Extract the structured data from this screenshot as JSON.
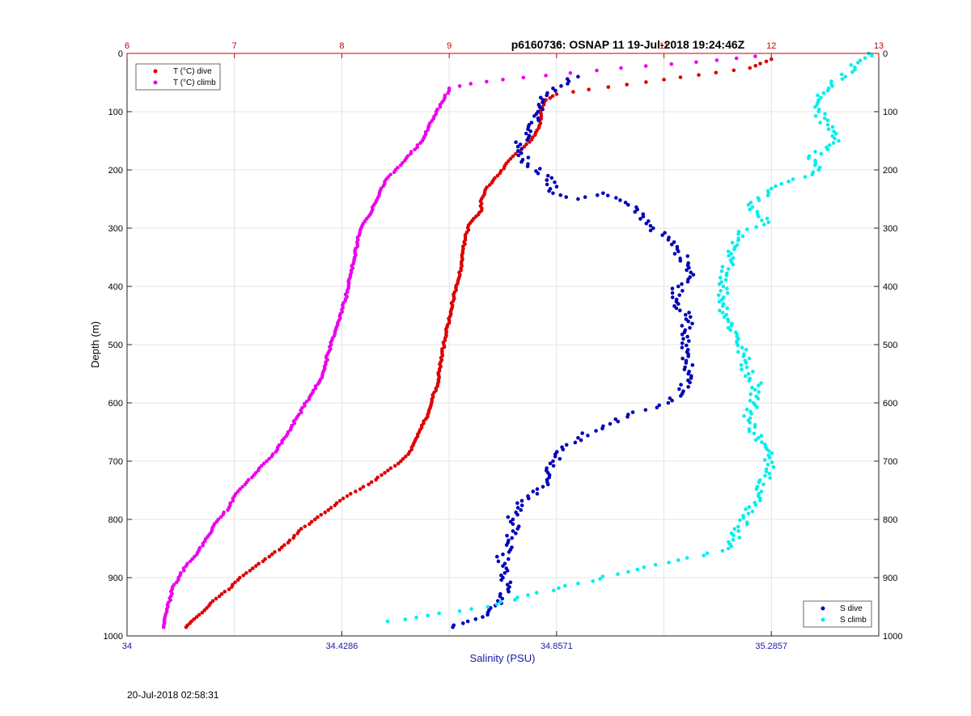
{
  "timestamp": "20-Jul-2018 02:58:31",
  "chart_data": {
    "type": "scatter",
    "title": "p6160736: OSNAP 11 19-Jul-2018 19:24:46Z",
    "ylabel": "Depth (m)",
    "xlabel_bottom": "Salinity (PSU)",
    "ylim": [
      0,
      1000
    ],
    "y_reversed": true,
    "yticks": [
      "0",
      "100",
      "200",
      "300",
      "400",
      "500",
      "600",
      "700",
      "800",
      "900",
      "1000"
    ],
    "x_top": {
      "range": [
        6,
        13
      ],
      "ticks": [
        "6",
        "7",
        "8",
        "9",
        "10",
        "11",
        "12",
        "13"
      ],
      "color": "#cc0000"
    },
    "x_bottom": {
      "range": [
        34,
        35.5
      ],
      "ticks": [
        "34",
        "34.4286",
        "34.8571",
        "35.2857"
      ],
      "tick_values": [
        34,
        34.4286,
        34.8571,
        35.2857
      ],
      "color": "#1a1aaa"
    },
    "grid": true,
    "legend_top": {
      "placement": "top-left",
      "items": [
        {
          "label": "T (°C) dive",
          "color": "#dd0000"
        },
        {
          "label": "T (°C) climb",
          "color": "#ee00ee"
        }
      ]
    },
    "legend_bottom": {
      "placement": "bottom-right",
      "items": [
        {
          "label": "S dive",
          "color": "#0000bb"
        },
        {
          "label": "S climb",
          "color": "#00eeee"
        }
      ]
    },
    "series": [
      {
        "name": "T (°C) dive",
        "axis": "top",
        "color": "#dd0000",
        "points": [
          [
            12.0,
            10
          ],
          [
            11.8,
            25
          ],
          [
            11.0,
            45
          ],
          [
            10.3,
            62
          ],
          [
            10.0,
            70
          ],
          [
            9.9,
            80
          ],
          [
            9.85,
            100
          ],
          [
            9.85,
            120
          ],
          [
            9.8,
            140
          ],
          [
            9.7,
            160
          ],
          [
            9.55,
            185
          ],
          [
            9.45,
            210
          ],
          [
            9.35,
            230
          ],
          [
            9.3,
            250
          ],
          [
            9.3,
            270
          ],
          [
            9.25,
            280
          ],
          [
            9.18,
            295
          ],
          [
            9.15,
            320
          ],
          [
            9.12,
            350
          ],
          [
            9.1,
            380
          ],
          [
            9.05,
            410
          ],
          [
            9.02,
            440
          ],
          [
            8.98,
            470
          ],
          [
            8.95,
            500
          ],
          [
            8.92,
            530
          ],
          [
            8.9,
            560
          ],
          [
            8.85,
            590
          ],
          [
            8.8,
            620
          ],
          [
            8.72,
            650
          ],
          [
            8.65,
            680
          ],
          [
            8.55,
            700
          ],
          [
            8.4,
            720
          ],
          [
            8.25,
            740
          ],
          [
            8.05,
            760
          ],
          [
            7.9,
            780
          ],
          [
            7.75,
            800
          ],
          [
            7.6,
            820
          ],
          [
            7.5,
            840
          ],
          [
            7.35,
            860
          ],
          [
            7.2,
            880
          ],
          [
            7.05,
            900
          ],
          [
            6.95,
            920
          ],
          [
            6.8,
            940
          ],
          [
            6.7,
            960
          ],
          [
            6.6,
            975
          ],
          [
            6.55,
            985
          ]
        ]
      },
      {
        "name": "T (°C) climb",
        "axis": "top",
        "color": "#ee00ee",
        "points": [
          [
            11.85,
            5
          ],
          [
            11.3,
            15
          ],
          [
            10.6,
            25
          ],
          [
            9.9,
            38
          ],
          [
            9.5,
            45
          ],
          [
            9.2,
            52
          ],
          [
            9.0,
            60
          ],
          [
            8.95,
            80
          ],
          [
            8.88,
            100
          ],
          [
            8.82,
            120
          ],
          [
            8.75,
            150
          ],
          [
            8.6,
            180
          ],
          [
            8.5,
            200
          ],
          [
            8.4,
            220
          ],
          [
            8.35,
            240
          ],
          [
            8.3,
            260
          ],
          [
            8.25,
            280
          ],
          [
            8.18,
            300
          ],
          [
            8.15,
            320
          ],
          [
            8.12,
            350
          ],
          [
            8.08,
            380
          ],
          [
            8.05,
            410
          ],
          [
            8.0,
            440
          ],
          [
            7.95,
            470
          ],
          [
            7.9,
            500
          ],
          [
            7.85,
            530
          ],
          [
            7.8,
            560
          ],
          [
            7.7,
            590
          ],
          [
            7.6,
            620
          ],
          [
            7.5,
            650
          ],
          [
            7.4,
            680
          ],
          [
            7.3,
            700
          ],
          [
            7.2,
            720
          ],
          [
            7.1,
            740
          ],
          [
            7.0,
            760
          ],
          [
            6.95,
            780
          ],
          [
            6.85,
            800
          ],
          [
            6.75,
            830
          ],
          [
            6.65,
            860
          ],
          [
            6.55,
            880
          ],
          [
            6.48,
            900
          ],
          [
            6.42,
            920
          ],
          [
            6.38,
            950
          ],
          [
            6.35,
            970
          ],
          [
            6.34,
            985
          ]
        ]
      },
      {
        "name": "S dive",
        "axis": "bottom",
        "color": "#0000bb",
        "points": [
          [
            34.9,
            40
          ],
          [
            34.85,
            60
          ],
          [
            34.83,
            80
          ],
          [
            34.82,
            100
          ],
          [
            34.8,
            130
          ],
          [
            34.78,
            160
          ],
          [
            34.8,
            190
          ],
          [
            34.84,
            210
          ],
          [
            34.85,
            240
          ],
          [
            34.9,
            250
          ],
          [
            34.95,
            240
          ],
          [
            35.0,
            260
          ],
          [
            35.03,
            280
          ],
          [
            35.05,
            300
          ],
          [
            35.08,
            320
          ],
          [
            35.1,
            340
          ],
          [
            35.12,
            360
          ],
          [
            35.13,
            380
          ],
          [
            35.1,
            400
          ],
          [
            35.1,
            430
          ],
          [
            35.12,
            460
          ],
          [
            35.11,
            490
          ],
          [
            35.12,
            520
          ],
          [
            35.12,
            550
          ],
          [
            35.11,
            580
          ],
          [
            35.08,
            600
          ],
          [
            35.0,
            620
          ],
          [
            34.95,
            640
          ],
          [
            34.9,
            660
          ],
          [
            34.87,
            680
          ],
          [
            34.85,
            700
          ],
          [
            34.84,
            720
          ],
          [
            34.84,
            740
          ],
          [
            34.8,
            760
          ],
          [
            34.78,
            780
          ],
          [
            34.77,
            800
          ],
          [
            34.77,
            820
          ],
          [
            34.76,
            840
          ],
          [
            34.75,
            860
          ],
          [
            34.75,
            880
          ],
          [
            34.75,
            900
          ],
          [
            34.76,
            920
          ],
          [
            34.74,
            940
          ],
          [
            34.72,
            960
          ],
          [
            34.68,
            975
          ],
          [
            34.65,
            985
          ]
        ]
      },
      {
        "name": "S climb",
        "axis": "bottom",
        "color": "#00eeee",
        "points": [
          [
            35.48,
            0
          ],
          [
            35.4,
            60
          ],
          [
            35.38,
            80
          ],
          [
            35.38,
            100
          ],
          [
            35.4,
            130
          ],
          [
            35.42,
            150
          ],
          [
            35.36,
            180
          ],
          [
            35.38,
            200
          ],
          [
            35.32,
            220
          ],
          [
            35.28,
            240
          ],
          [
            35.24,
            260
          ],
          [
            35.26,
            280
          ],
          [
            35.28,
            290
          ],
          [
            35.22,
            310
          ],
          [
            35.2,
            340
          ],
          [
            35.2,
            370
          ],
          [
            35.19,
            400
          ],
          [
            35.19,
            430
          ],
          [
            35.2,
            460
          ],
          [
            35.22,
            490
          ],
          [
            35.23,
            520
          ],
          [
            35.24,
            550
          ],
          [
            35.26,
            570
          ],
          [
            35.25,
            600
          ],
          [
            35.24,
            630
          ],
          [
            35.26,
            660
          ],
          [
            35.28,
            690
          ],
          [
            35.29,
            710
          ],
          [
            35.27,
            740
          ],
          [
            35.26,
            760
          ],
          [
            35.24,
            790
          ],
          [
            35.22,
            820
          ],
          [
            35.2,
            850
          ],
          [
            35.1,
            870
          ],
          [
            35.0,
            890
          ],
          [
            34.9,
            910
          ],
          [
            34.8,
            930
          ],
          [
            34.72,
            950
          ],
          [
            34.6,
            965
          ],
          [
            34.52,
            975
          ]
        ]
      }
    ]
  }
}
